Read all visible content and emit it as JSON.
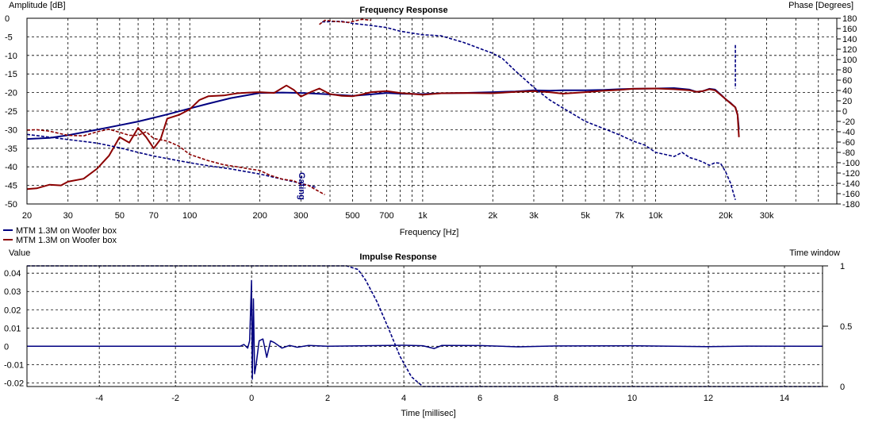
{
  "colors": {
    "series_blue": "#000080",
    "series_red": "#8b0000",
    "grid": "#000000",
    "background": "#ffffff"
  },
  "chart_data": [
    {
      "type": "line",
      "title": "Frequency Response",
      "xlabel": "Frequency [Hz]",
      "ylabel": "Amplitude [dB]",
      "y2label": "Phase [Degrees]",
      "xscale": "log",
      "xlim": [
        20,
        60000
      ],
      "ylim": [
        -50,
        0
      ],
      "y2lim": [
        -180,
        180
      ],
      "grid": true,
      "legend_position": "bottom-left",
      "x_ticks": [
        "20",
        "30",
        "50",
        "70",
        "100",
        "200",
        "300",
        "500",
        "700",
        "1k",
        "2k",
        "3k",
        "5k",
        "7k",
        "10k",
        "20k",
        "30k"
      ],
      "x_tick_values": [
        20,
        30,
        50,
        70,
        100,
        200,
        300,
        500,
        700,
        1000,
        2000,
        3000,
        5000,
        7000,
        10000,
        20000,
        30000
      ],
      "y_ticks": [
        "0",
        "-5",
        "-10",
        "-15",
        "-20",
        "-25",
        "-30",
        "-35",
        "-40",
        "-45",
        "-50"
      ],
      "y_tick_values": [
        0,
        -5,
        -10,
        -15,
        -20,
        -25,
        -30,
        -35,
        -40,
        -45,
        -50
      ],
      "y2_ticks": [
        "180",
        "160",
        "140",
        "120",
        "100",
        "80",
        "60",
        "40",
        "20",
        "0",
        "-20",
        "-40",
        "-60",
        "-80",
        "-100",
        "-120",
        "-140",
        "-160",
        "-180"
      ],
      "y2_tick_values": [
        180,
        160,
        140,
        120,
        100,
        80,
        60,
        40,
        20,
        0,
        -20,
        -40,
        -60,
        -80,
        -100,
        -120,
        -140,
        -160,
        -180
      ],
      "annotation": "Gating",
      "series": [
        {
          "name": "MTM 1.3M on Woofer box",
          "color": "#000080",
          "style": "solid",
          "axis": "amplitude",
          "x": [
            20,
            25,
            30,
            40,
            50,
            60,
            70,
            80,
            100,
            120,
            150,
            200,
            250,
            300,
            400,
            500,
            600,
            700,
            800,
            1000,
            1200,
            1500,
            2000,
            2500,
            3000,
            3500,
            4000,
            5000,
            6000,
            7000,
            8000,
            10000,
            12000,
            14000,
            15000,
            16000,
            17000,
            18000,
            19000,
            20000,
            21000,
            22000,
            22500,
            22800
          ],
          "y": [
            -32.5,
            -32.2,
            -31.5,
            -30,
            -28.8,
            -27.8,
            -26.8,
            -25.9,
            -24.3,
            -23,
            -21.5,
            -20.1,
            -20,
            -20.1,
            -20.5,
            -20.9,
            -20.5,
            -20.1,
            -20.3,
            -20.4,
            -20.2,
            -20.1,
            -19.9,
            -19.7,
            -19.4,
            -19.5,
            -19.4,
            -19.4,
            -19.3,
            -19.1,
            -19,
            -18.9,
            -18.8,
            -19.2,
            -19.8,
            -19.6,
            -19,
            -19.2,
            -20.5,
            -21.8,
            -22.8,
            -24,
            -26,
            -30
          ]
        },
        {
          "name": "MTM 1.3M on Woofer box",
          "color": "#8b0000",
          "style": "solid",
          "axis": "amplitude",
          "x": [
            20,
            22,
            25,
            28,
            30,
            35,
            40,
            45,
            50,
            55,
            60,
            65,
            70,
            75,
            80,
            90,
            100,
            110,
            120,
            140,
            160,
            180,
            200,
            230,
            260,
            280,
            300,
            330,
            360,
            400,
            450,
            500,
            550,
            600,
            700,
            800,
            1000,
            1200,
            1500,
            2000,
            2500,
            3000,
            3500,
            4000,
            5000,
            6000,
            7000,
            8000,
            10000,
            12000,
            14000,
            15000,
            16000,
            17000,
            18000,
            19000,
            20000,
            21000,
            22000,
            22500,
            22800
          ],
          "y": [
            -46,
            -45.8,
            -44.8,
            -45,
            -44,
            -43.2,
            -40.5,
            -37,
            -32,
            -33.5,
            -29.5,
            -32,
            -35,
            -32.5,
            -27,
            -26,
            -24.5,
            -22,
            -21,
            -20.8,
            -20.2,
            -20,
            -19.9,
            -20.1,
            -18.1,
            -19.3,
            -21.1,
            -19.9,
            -18.9,
            -20.4,
            -20.9,
            -21,
            -20.5,
            -19.9,
            -19.6,
            -20.1,
            -20.6,
            -20.2,
            -20.1,
            -20.2,
            -19.8,
            -19.6,
            -19.9,
            -20.3,
            -19.9,
            -19.5,
            -19.3,
            -19,
            -18.9,
            -19.1,
            -19.4,
            -19.8,
            -19.6,
            -19.1,
            -19.4,
            -20.6,
            -21.8,
            -22.9,
            -24,
            -26,
            -32
          ]
        },
        {
          "name": "MTM 1.3M on Woofer box",
          "color": "#000080",
          "style": "dashed",
          "axis": "phase",
          "x": [
            20,
            30,
            40,
            50,
            60,
            70,
            80,
            100,
            120,
            150,
            200,
            250,
            300,
            350
          ],
          "y": [
            -45,
            -55,
            -62,
            -71,
            -80,
            -87,
            -92,
            -100,
            -106,
            -112,
            -122,
            -132,
            -140,
            -148
          ]
        },
        {
          "name": "MTM 1.3M on Woofer box",
          "color": "#8b0000",
          "style": "dashed",
          "axis": "phase",
          "x": [
            20,
            22,
            25,
            30,
            35,
            40,
            45,
            50,
            55,
            60,
            65,
            70,
            80,
            90,
            100,
            120,
            140,
            160,
            180,
            200,
            220,
            250,
            280,
            300,
            320,
            350,
            380
          ],
          "y": [
            -37,
            -36,
            -39,
            -47,
            -48,
            -40,
            -35,
            -41,
            -47,
            -47,
            -40,
            -53,
            -58,
            -68,
            -84,
            -96,
            -104,
            -108,
            -112,
            -115,
            -124,
            -132,
            -135,
            -142,
            -143,
            -153,
            -162
          ]
        },
        {
          "name": "MTM 1.3M on Woofer box",
          "color": "#000080",
          "style": "dashed",
          "axis": "phase",
          "x": [
            370,
            450,
            500,
            550,
            600,
            700,
            800,
            1000,
            1200,
            1500,
            2000,
            2200,
            2500,
            3000,
            3500,
            4000,
            5000,
            6000,
            7000,
            8000,
            9000,
            10000,
            11000,
            12000,
            13000,
            14000,
            15000,
            16000,
            17000,
            18000,
            19000,
            20000,
            21000,
            22000
          ],
          "y": [
            173,
            174,
            170,
            168,
            166,
            162,
            155,
            148,
            146,
            133,
            112,
            102,
            78,
            46,
            22,
            6,
            -20,
            -34,
            -46,
            -58,
            -66,
            -80,
            -84,
            -88,
            -80,
            -90,
            -94,
            -99,
            -105,
            -100,
            -101,
            -118,
            -140,
            -172
          ]
        },
        {
          "name": "MTM 1.3M on Woofer box",
          "color": "#8b0000",
          "style": "dashed",
          "axis": "phase",
          "x": [
            360,
            380,
            420,
            480,
            550,
            600
          ],
          "y": [
            168,
            176,
            174,
            172,
            178,
            176
          ]
        },
        {
          "name": "MTM 1.3M on Woofer box",
          "color": "#000080",
          "style": "dashed",
          "axis": "phase",
          "x": [
            22000,
            22000
          ],
          "y": [
            128,
            44
          ]
        }
      ]
    },
    {
      "type": "line",
      "title": "Impulse Response",
      "xlabel": "Time [millisec]",
      "ylabel": "Value",
      "y2label": "Time window",
      "xlim": [
        -5.9,
        15
      ],
      "ylim": [
        -0.022,
        0.044
      ],
      "y2lim": [
        0,
        1
      ],
      "grid": true,
      "x_ticks": [
        "-4",
        "-2",
        "0",
        "2",
        "4",
        "6",
        "8",
        "10",
        "12",
        "14"
      ],
      "x_tick_values": [
        -4,
        -2,
        0,
        2,
        4,
        6,
        8,
        10,
        12,
        14
      ],
      "y_ticks": [
        "0.04",
        "0.03",
        "0.02",
        "0.01",
        "0",
        "-0.01",
        "-0.02"
      ],
      "y_tick_values": [
        0.04,
        0.03,
        0.02,
        0.01,
        0,
        -0.01,
        -0.02
      ],
      "y2_ticks": [
        "1",
        "0.5",
        "0"
      ],
      "y2_tick_values": [
        1,
        0.5,
        0
      ],
      "series": [
        {
          "name": "impulse",
          "color": "#000080",
          "style": "solid",
          "axis": "value",
          "x": [
            -5.9,
            -0.3,
            -0.2,
            -0.1,
            -0.05,
            0,
            0.02,
            0.05,
            0.08,
            0.12,
            0.2,
            0.3,
            0.4,
            0.5,
            0.6,
            0.8,
            1.0,
            1.2,
            1.5,
            2.0,
            3.0,
            4.0,
            4.5,
            4.8,
            5.0,
            6.0,
            7.0,
            8.0,
            10.0,
            12.0,
            13.0,
            15.0
          ],
          "y": [
            0,
            0,
            0.001,
            -0.001,
            0.003,
            0.036,
            -0.018,
            0.026,
            -0.015,
            -0.01,
            0.003,
            0.004,
            -0.006,
            0.003,
            0.002,
            -0.001,
            0.0005,
            -0.0005,
            0.0005,
            0,
            0.0003,
            0.0006,
            0.0003,
            -0.0012,
            0.0005,
            0.0004,
            -0.0003,
            0.0002,
            0.0003,
            -0.0002,
            0.0001,
            0
          ]
        },
        {
          "name": "time window",
          "color": "#000080",
          "style": "dashed",
          "axis": "window",
          "x": [
            -5.9,
            2.5,
            2.8,
            3.0,
            3.3,
            3.6,
            3.9,
            4.2,
            4.5,
            15
          ],
          "y": [
            1,
            1,
            0.97,
            0.88,
            0.7,
            0.48,
            0.25,
            0.08,
            0,
            0
          ]
        }
      ]
    }
  ]
}
